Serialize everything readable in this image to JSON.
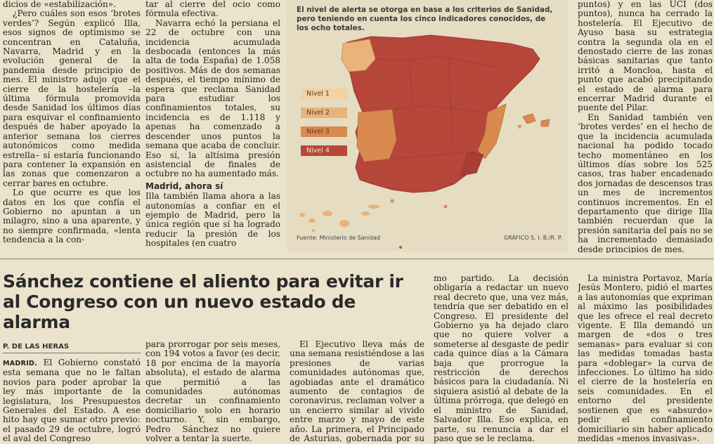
{
  "top_article": {
    "col1": [
      "dicios de «estabilización».",
      "¿Pero cuáles son esos ‘brotes verdes’? Según explicó Illa, esos signos de optimismo se concentran en Cataluña, Navarra, Madrid y en la evolución general de la pandemia desde principio de mes. El ministro adujo que el cierre de la hostelería –la última fórmula promovida desde Sanidad los últimos días para esquivar el confinamiento después de haber apoyado la anterior semana los cierres autonómicos como medida estrella– sí estaría funcionando para contener la expansión en las zonas que comenzaron a cerrar bares en octubre.",
      "Lo que ocurre es que los datos en los que confía el Gobierno no apuntan a un milagro, sino a una aparente, y no siempre confirmada, «lenta tendencia a la con-"
    ],
    "col2": [
      "tar al cierre del ocio como fórmula efectiva.",
      "Navarra echó la persiana el 22 de octubre con una incidencia acumulada desbocada (entonces la más alta de toda España) de 1.058 positivos. Más de dos semanas después, el tiempo mínimo de espera que reclama Sanidad para estudiar los confinamientos totales, su incidencia es de 1.118 y apenas ha comenzado a descender unos puntos la semana que acaba de concluir. Eso sí, la altísima presión asistencial de finales de octubre no ha aumentado más."
    ],
    "col2_subhead": "Madrid, ahora sí",
    "col2_after": "Illa también llama ahora a las autonomías a confiar en el ejemplo de Madrid, pero la única región que sí ha logrado reducir la presión de los hospitales (en cuatro",
    "col3": [
      "puntos) y en las UCI (dos puntos), nunca ha cerrado la hostelería. El Ejecutivo de Ayuso basa su estrategia contra la segunda ola en el denostado cierre de las zonas básicas sanitarias que tanto irritó a Moncloa, hasta el punto que acabó precipitando el estado de alarma para encerrar Madrid durante el puente del Pilar.",
      "En Sanidad también ven ‘brotes verdes’ en el hecho de que la incidencia acumulada nacional ha podido tocado techo momentáneo en los últimos días sobre los 525 casos, tras haber encadenado dos jornadas de descensos tras un mes de incrementos continuos incrementos. En el departamento que dirige Illa también recuerdan que la presión sanitaria del país no se ha incrementado demasiado desde principios de mes."
    ]
  },
  "graphic": {
    "note": "El nivel de alerta se otorga en base a los criterios de Sanidad, pero teniendo en cuenta los cinco indicadores conocidos, de los ocho totales.",
    "legend": [
      {
        "label": "Nivel 1",
        "color": "#f2d2a0"
      },
      {
        "label": "Nivel 2",
        "color": "#e9b37a"
      },
      {
        "label": "Nivel 3",
        "color": "#d98a4e"
      },
      {
        "label": "Nivel 4",
        "color": "#b6463a"
      }
    ],
    "source": "Fuente: Ministerio de Sanidad",
    "credit": "GRÁFICO S. I. B./R. P."
  },
  "article": {
    "headline": "Sánchez contiene el aliento para evitar ir al Congreso con un nuevo estado de alarma",
    "byline": "P. DE LAS HERAS",
    "dateline": "MADRID.",
    "col1": "El Gobierno constató esta semana que no le faltan novios para poder aprobar la ley más importante de la legislatura, los Presupuestos Generales del Estado. A ese hito hay que sumar otro previo: el pasado 29 de octubre, logró el aval del Congreso",
    "col2": "para prorrogar por seis meses, con 194 votos a favor (es decir, 18 por encima de la mayoría absoluta), el estado de alarma que permitió a las comunidades autónomas decretar un confinamiento domiciliario solo en horario nocturno. Y, sin embargo, Pedro Sánchez no quiere volver a tentar la suerte.",
    "col3": "El Ejecutivo lleva más de una semana resistiéndose a las presiones de varias comunidades autónomas que, agobiadas ante el dramático aumento de contagios de coronavirus, reclaman volver a un encierro similar al vivido entre marzo y mayo de este año. La primera, el Principado de Asturias, gobernada por su mis-",
    "col4": "mo partido. La decisión obligaría a redactar un nuevo real decreto que, una vez más, tendría que ser debatido en el Congreso. El presidente del Gobierno ya ha dejado claro que no quiere volver a someterse al desgaste de pedir cada quince días a la Cámara baja que prorrogue la restricción de derechos básicos para la ciudadanía. Ni siquiera asistió al debate de la última prórroga, que delegó en el ministro de Sanidad, Salvador Illa. Eso explica, en parte, su renuncia a dar el paso que se le reclama.",
    "col5": "La ministra Portavoz, María Jesús Montero, pidió el martes a las autonomías que expriman al máximo las posibilidades que les ofrece el real decreto vigente. E Illa demandó un margen de «dos o tres semanas» para evaluar si con las medidas tomadas basta para «doblegar» la curva de infecciones. Lo último ha sido el cierre de la hostelería en seis comunidades. En el entorno del presidente sostienen que es «absurdo» pedir el confinamiento domiciliario sin haber aplicado medidas «menos invasivas»."
  }
}
